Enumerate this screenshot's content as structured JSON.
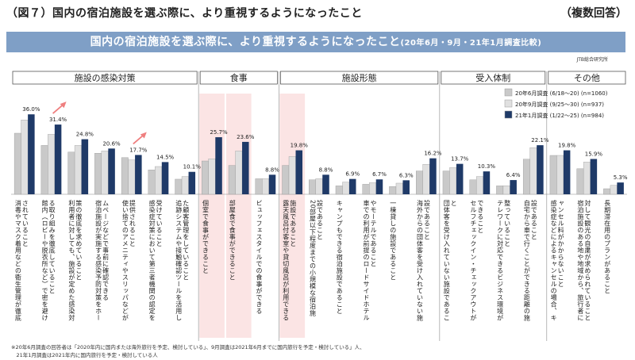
{
  "page": {
    "header_left": "（図７）国内の宿泊施設を選ぶ際に、より重視するようになったこと",
    "header_right": "（複数回答）",
    "banner_main": "国内の宿泊施設を選ぶ際に、より重視するようになったこと",
    "banner_sub": "(20年6月・9月・21年1月調査比較)",
    "source": "JTB総合研究所",
    "notes": [
      "※20年6月調査の回答者は「2020年内に国内または海外旅行を予定、検討している」、9月調査は2021年6月までに国内旅行を予定・検討している」人、",
      "　21年1月調査は2021年内に国内旅行を予定・検討している人"
    ]
  },
  "chart_data": {
    "type": "bar",
    "ylim": [
      0,
      40
    ],
    "groups": [
      {
        "label": "施設の感染対策",
        "size": 7
      },
      {
        "label": "食事",
        "size": 3
      },
      {
        "label": "施設形態",
        "size": 6
      },
      {
        "label": "受入体制",
        "size": 4
      },
      {
        "label": "その他",
        "size": 3
      }
    ],
    "categories": [
      "消毒やマスク着用などの衛生管理が徹底されていること",
      "館内（ロビーや脱衣所など）で密を避ける取り組みを徹底していること",
      "利用者に対しても、施設が定めた感染対策の徹底を求めていること",
      "宿泊施設が実施する感染予防対策をホームページなどで事前に確認できる",
      "使い捨てのアメニティやスリッパなどが提供されること",
      "感染症対策において第三者機関の認定を受けていること",
      "追跡システムや接触確認ツールを活用した顧客管理をしていること",
      "個室で食事ができること",
      "部屋食で食事ができること",
      "ビュッフェスタイルでの食事ができる",
      "露天風呂付客室や貸切風呂が利用できる施設であること",
      "20部屋以下程度までの小規模な宿泊施設であること",
      "キャンプもできる宿泊施設であること",
      "車での利用が前提のロードサイドホテルやモーテルであること",
      "一棟貸しの施設であること",
      "海外からの団体客を受け入れていない施設であること",
      "団体客を受け入れていない施設であること",
      "セルフチェックイン・チェックアウトができること",
      "テレワークに対応できるビジネス環境が整っていること",
      "自宅から車で行くことができる距離の施設であること",
      "感染症などによるキャンセルの場合、キャンセル料がかからないこと",
      "宿泊施設のある地や地域から、旅行者に対して観光の自粛が求められていること",
      "長期滞在用のプランがあること"
    ],
    "series": [
      {
        "name": "20年6月調査 (6/18～20) (n=1060)",
        "color": "#c9c9c9",
        "values": [
          27.5,
          22.0,
          19.0,
          18.5,
          16.5,
          11.0,
          6.8,
          15.0,
          13.0,
          7.0,
          13.0,
          6.5,
          3.8,
          4.5,
          3.5,
          10.5,
          10.5,
          6.5,
          3.8,
          15.8,
          17.5,
          11.5,
          2.5
        ]
      },
      {
        "name": "20年9月調査 (9/25～30) (n=937)",
        "color": "#e0e0e0",
        "values": [
          33.5,
          27.0,
          22.0,
          19.5,
          15.5,
          12.5,
          8.0,
          16.0,
          19.5,
          7.0,
          17.0,
          7.0,
          5.5,
          5.2,
          5.0,
          13.5,
          12.0,
          8.0,
          3.8,
          21.0,
          17.5,
          14.5,
          4.0
        ]
      },
      {
        "name": "21年1月調査 (1/22～25) (n=984)",
        "color": "#1f3a68",
        "values": [
          36.0,
          31.4,
          24.8,
          20.6,
          17.7,
          14.5,
          10.1,
          25.7,
          23.6,
          8.8,
          19.8,
          8.8,
          6.9,
          6.7,
          6.3,
          16.2,
          13.7,
          10.3,
          6.4,
          22.1,
          19.8,
          15.9,
          5.3
        ]
      }
    ],
    "labels": [
      "36.0%",
      "31.4%",
      "24.8%",
      "20.6%",
      "17.7%",
      "14.5%",
      "10.1%",
      "25.7%",
      "23.6%",
      "8.8%",
      "19.8%",
      "8.8%",
      "6.9%",
      "6.7%",
      "6.3%",
      "16.2%",
      "13.7%",
      "10.3%",
      "6.4%",
      "22.1%",
      "19.8%",
      "15.9%",
      "5.3%"
    ],
    "highlighted": [
      7,
      8,
      10
    ],
    "trend_arrows": [
      1,
      4
    ],
    "legend_position": "top-right",
    "grid": false
  }
}
